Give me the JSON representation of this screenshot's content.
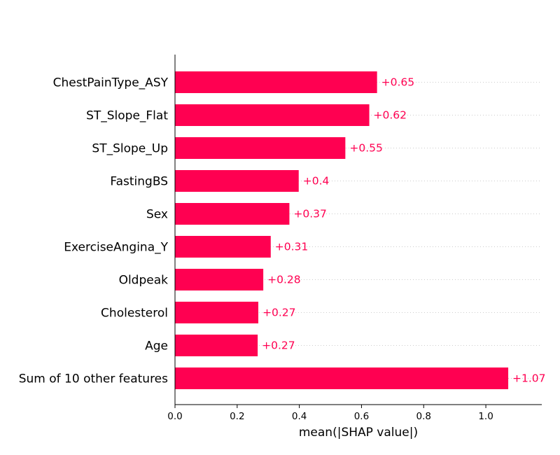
{
  "chart_data": {
    "type": "bar",
    "orientation": "horizontal",
    "categories": [
      "ChestPainType_ASY",
      "ST_Slope_Flat",
      "ST_Slope_Up",
      "FastingBS",
      "Sex",
      "ExerciseAngina_Y",
      "Oldpeak",
      "Cholesterol",
      "Age",
      "Sum of 10 other features"
    ],
    "values": [
      0.65,
      0.625,
      0.548,
      0.398,
      0.368,
      0.308,
      0.284,
      0.268,
      0.266,
      1.072
    ],
    "value_labels": [
      "+0.65",
      "+0.62",
      "+0.55",
      "+0.4",
      "+0.37",
      "+0.31",
      "+0.28",
      "+0.27",
      "+0.27",
      "+1.07"
    ],
    "xlabel": "mean(|SHAP value|)",
    "ylabel": "",
    "xlim": [
      0,
      1.18
    ],
    "xticks": [
      0.0,
      0.2,
      0.4,
      0.6,
      0.8,
      1.0
    ],
    "xtick_labels": [
      "0.0",
      "0.2",
      "0.4",
      "0.6",
      "0.8",
      "1.0"
    ],
    "grid": "dotted horizontal guide lines",
    "colors": {
      "bar": "#ff0051",
      "value_label": "#ff0051",
      "axis": "#000000",
      "guide": "#cccccc"
    }
  }
}
